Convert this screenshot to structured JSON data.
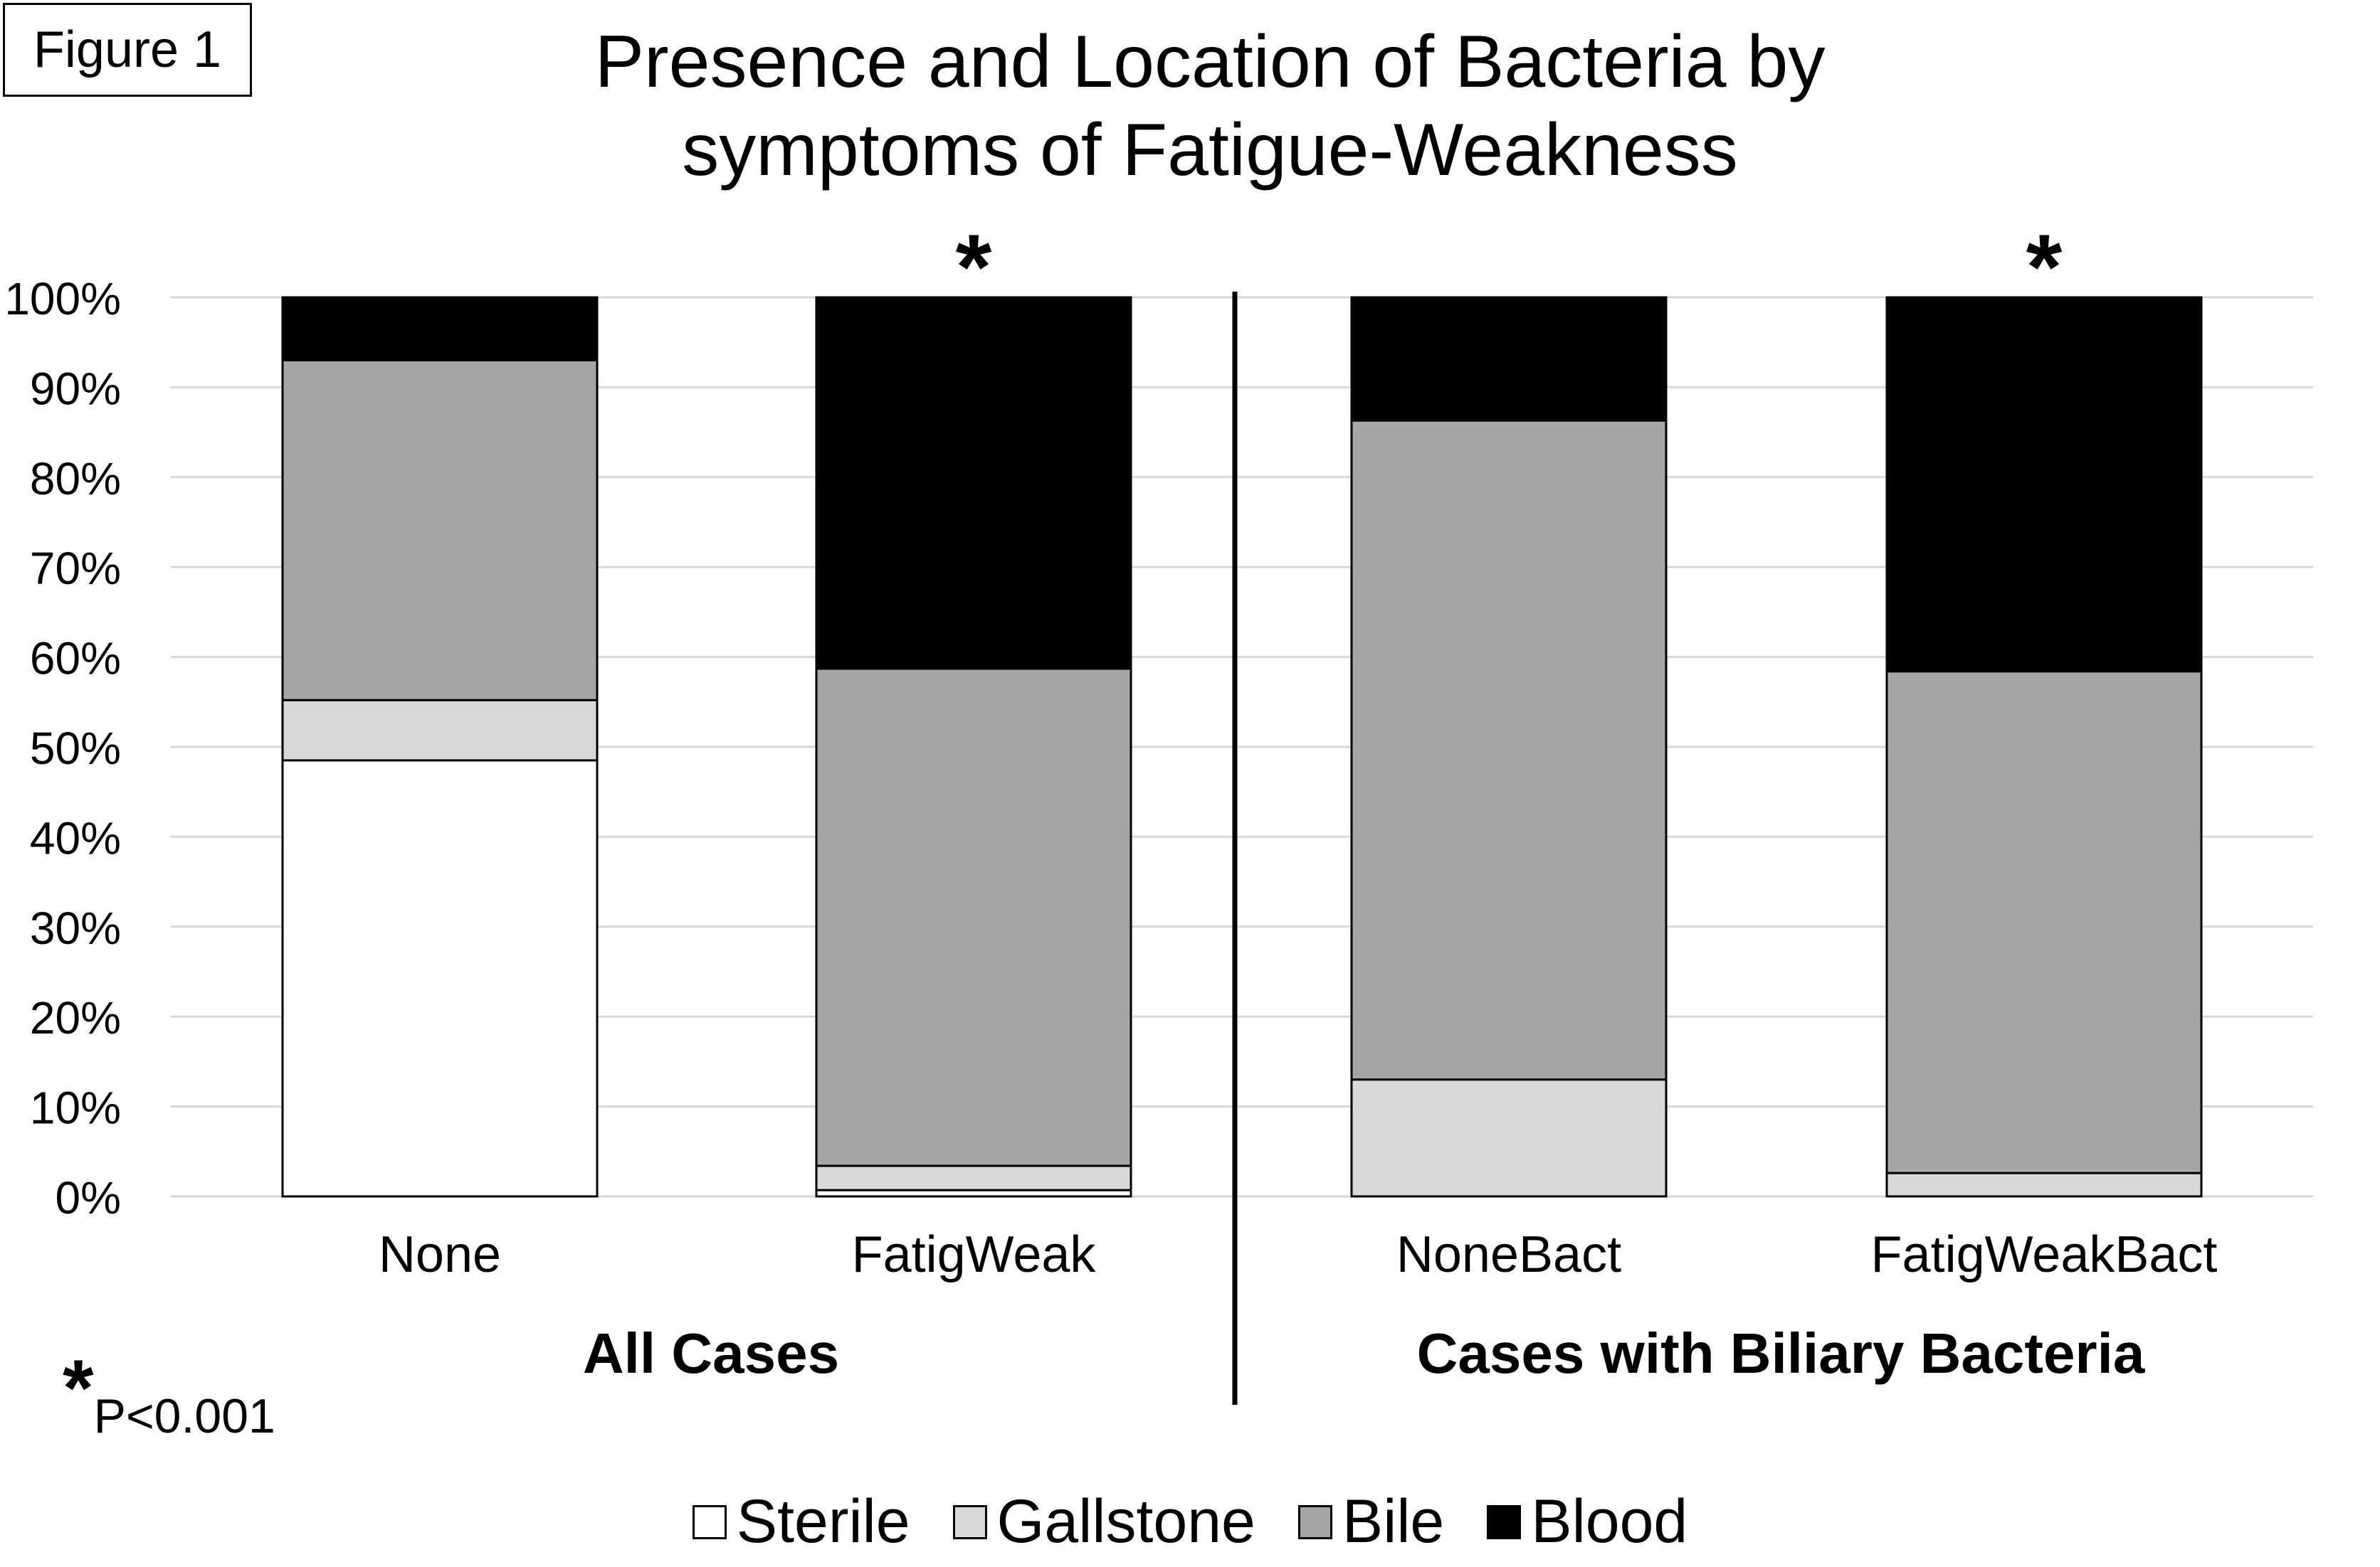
{
  "figure_label": "Figure 1",
  "footnote": {
    "marker": "*",
    "text": "P<0.001"
  },
  "chart_data": {
    "type": "bar",
    "stacked": true,
    "title": "Presence and Location of Bacteria by symptoms of Fatigue-Weakness",
    "title_lines": [
      "Presence and Location of Bacteria by",
      "symptoms of Fatigue-Weakness"
    ],
    "categories": [
      "None",
      "FatigWeak",
      "NoneBact",
      "FatigWeakBact"
    ],
    "groups": [
      {
        "name": "All Cases",
        "categories": [
          "None",
          "FatigWeak"
        ]
      },
      {
        "name": "Cases with Biliary Bacteria",
        "categories": [
          "NoneBact",
          "FatigWeakBact"
        ]
      }
    ],
    "significance_markers": [
      {
        "category": "FatigWeak",
        "marker": "*"
      },
      {
        "category": "FatigWeakBact",
        "marker": "*"
      }
    ],
    "series": [
      {
        "name": "Sterile",
        "color": "#ffffff",
        "values": [
          48.5,
          0.7,
          0,
          0
        ]
      },
      {
        "name": "Gallstone",
        "color": "#d9d9d9",
        "values": [
          6.7,
          2.7,
          13.0,
          2.6
        ]
      },
      {
        "name": "Bile",
        "color": "#a6a6a6",
        "values": [
          37.8,
          55.3,
          73.3,
          55.8
        ]
      },
      {
        "name": "Blood",
        "color": "#000000",
        "values": [
          7.0,
          41.3,
          13.7,
          41.6
        ]
      }
    ],
    "ylim": [
      0,
      100
    ],
    "yticks": [
      "0%",
      "10%",
      "20%",
      "30%",
      "40%",
      "50%",
      "60%",
      "70%",
      "80%",
      "90%",
      "100%"
    ],
    "grid": true,
    "legend_position": "bottom"
  }
}
